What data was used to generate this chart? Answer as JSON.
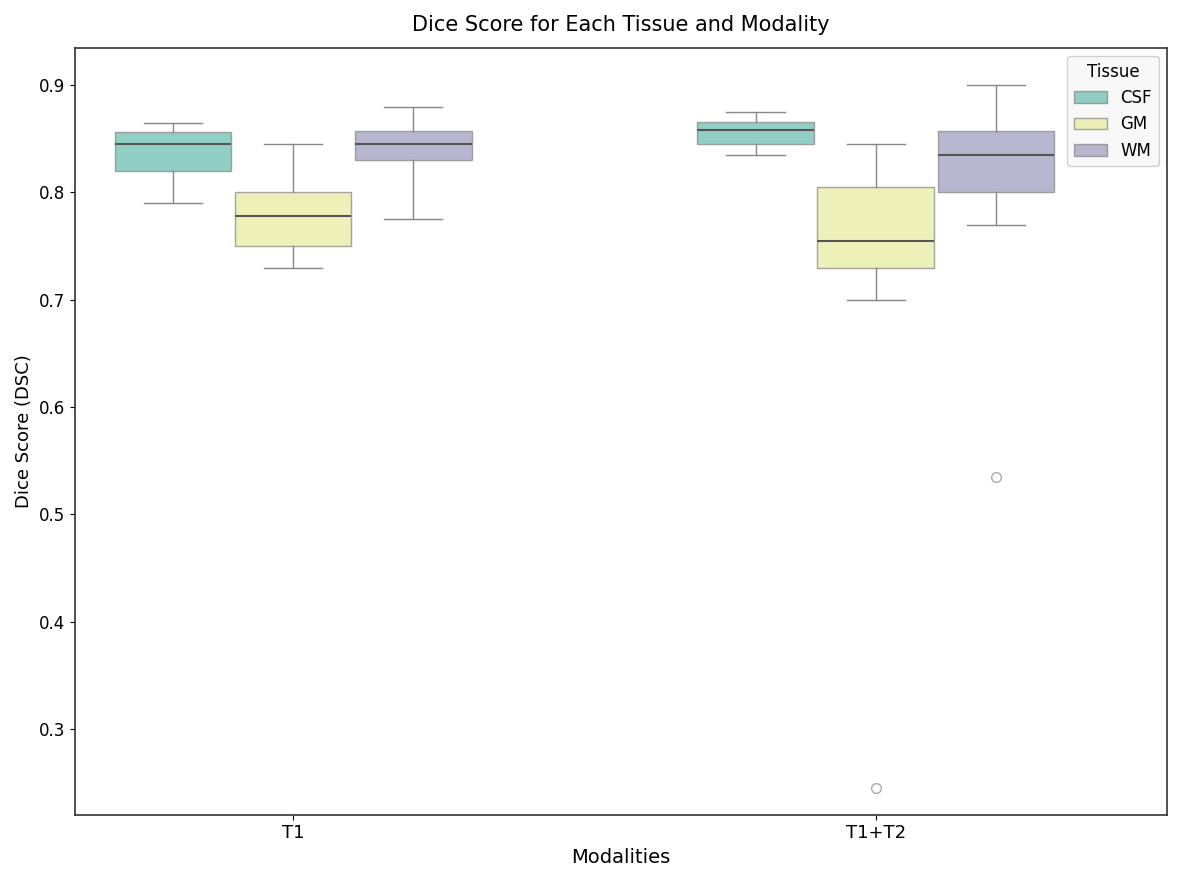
{
  "title": "Dice Score for Each Tissue and Modality",
  "xlabel": "Modalities",
  "ylabel": "Dice Score (DSC)",
  "modalities": [
    "T1",
    "T1+T2"
  ],
  "tissues": [
    "CSF",
    "GM",
    "WM"
  ],
  "colors": {
    "CSF": "#6dbfb0",
    "GM": "#e8eca0",
    "WM": "#a09fc0"
  },
  "box_data": {
    "T1": {
      "CSF": {
        "whislo": 0.79,
        "q1": 0.82,
        "med": 0.845,
        "q3": 0.856,
        "whishi": 0.865,
        "fliers": []
      },
      "GM": {
        "whislo": 0.73,
        "q1": 0.75,
        "med": 0.778,
        "q3": 0.8,
        "whishi": 0.845,
        "fliers": []
      },
      "WM": {
        "whislo": 0.775,
        "q1": 0.83,
        "med": 0.845,
        "q3": 0.857,
        "whishi": 0.88,
        "fliers": []
      }
    },
    "T1+T2": {
      "CSF": {
        "whislo": 0.835,
        "q1": 0.845,
        "med": 0.858,
        "q3": 0.866,
        "whishi": 0.875,
        "fliers": []
      },
      "GM": {
        "whislo": 0.7,
        "q1": 0.73,
        "med": 0.755,
        "q3": 0.805,
        "whishi": 0.845,
        "fliers": [
          0.245
        ]
      },
      "WM": {
        "whislo": 0.77,
        "q1": 0.8,
        "med": 0.835,
        "q3": 0.857,
        "whishi": 0.9,
        "fliers": [
          0.535
        ]
      }
    }
  },
  "ylim": [
    0.22,
    0.935
  ],
  "yticks": [
    0.3,
    0.4,
    0.5,
    0.6,
    0.7,
    0.8,
    0.9
  ],
  "background_color": "#ffffff",
  "legend_title": "Tissue",
  "box_width": 0.32,
  "mod_centers": [
    1.0,
    2.6
  ],
  "offsets": [
    -0.33,
    0.0,
    0.33
  ]
}
